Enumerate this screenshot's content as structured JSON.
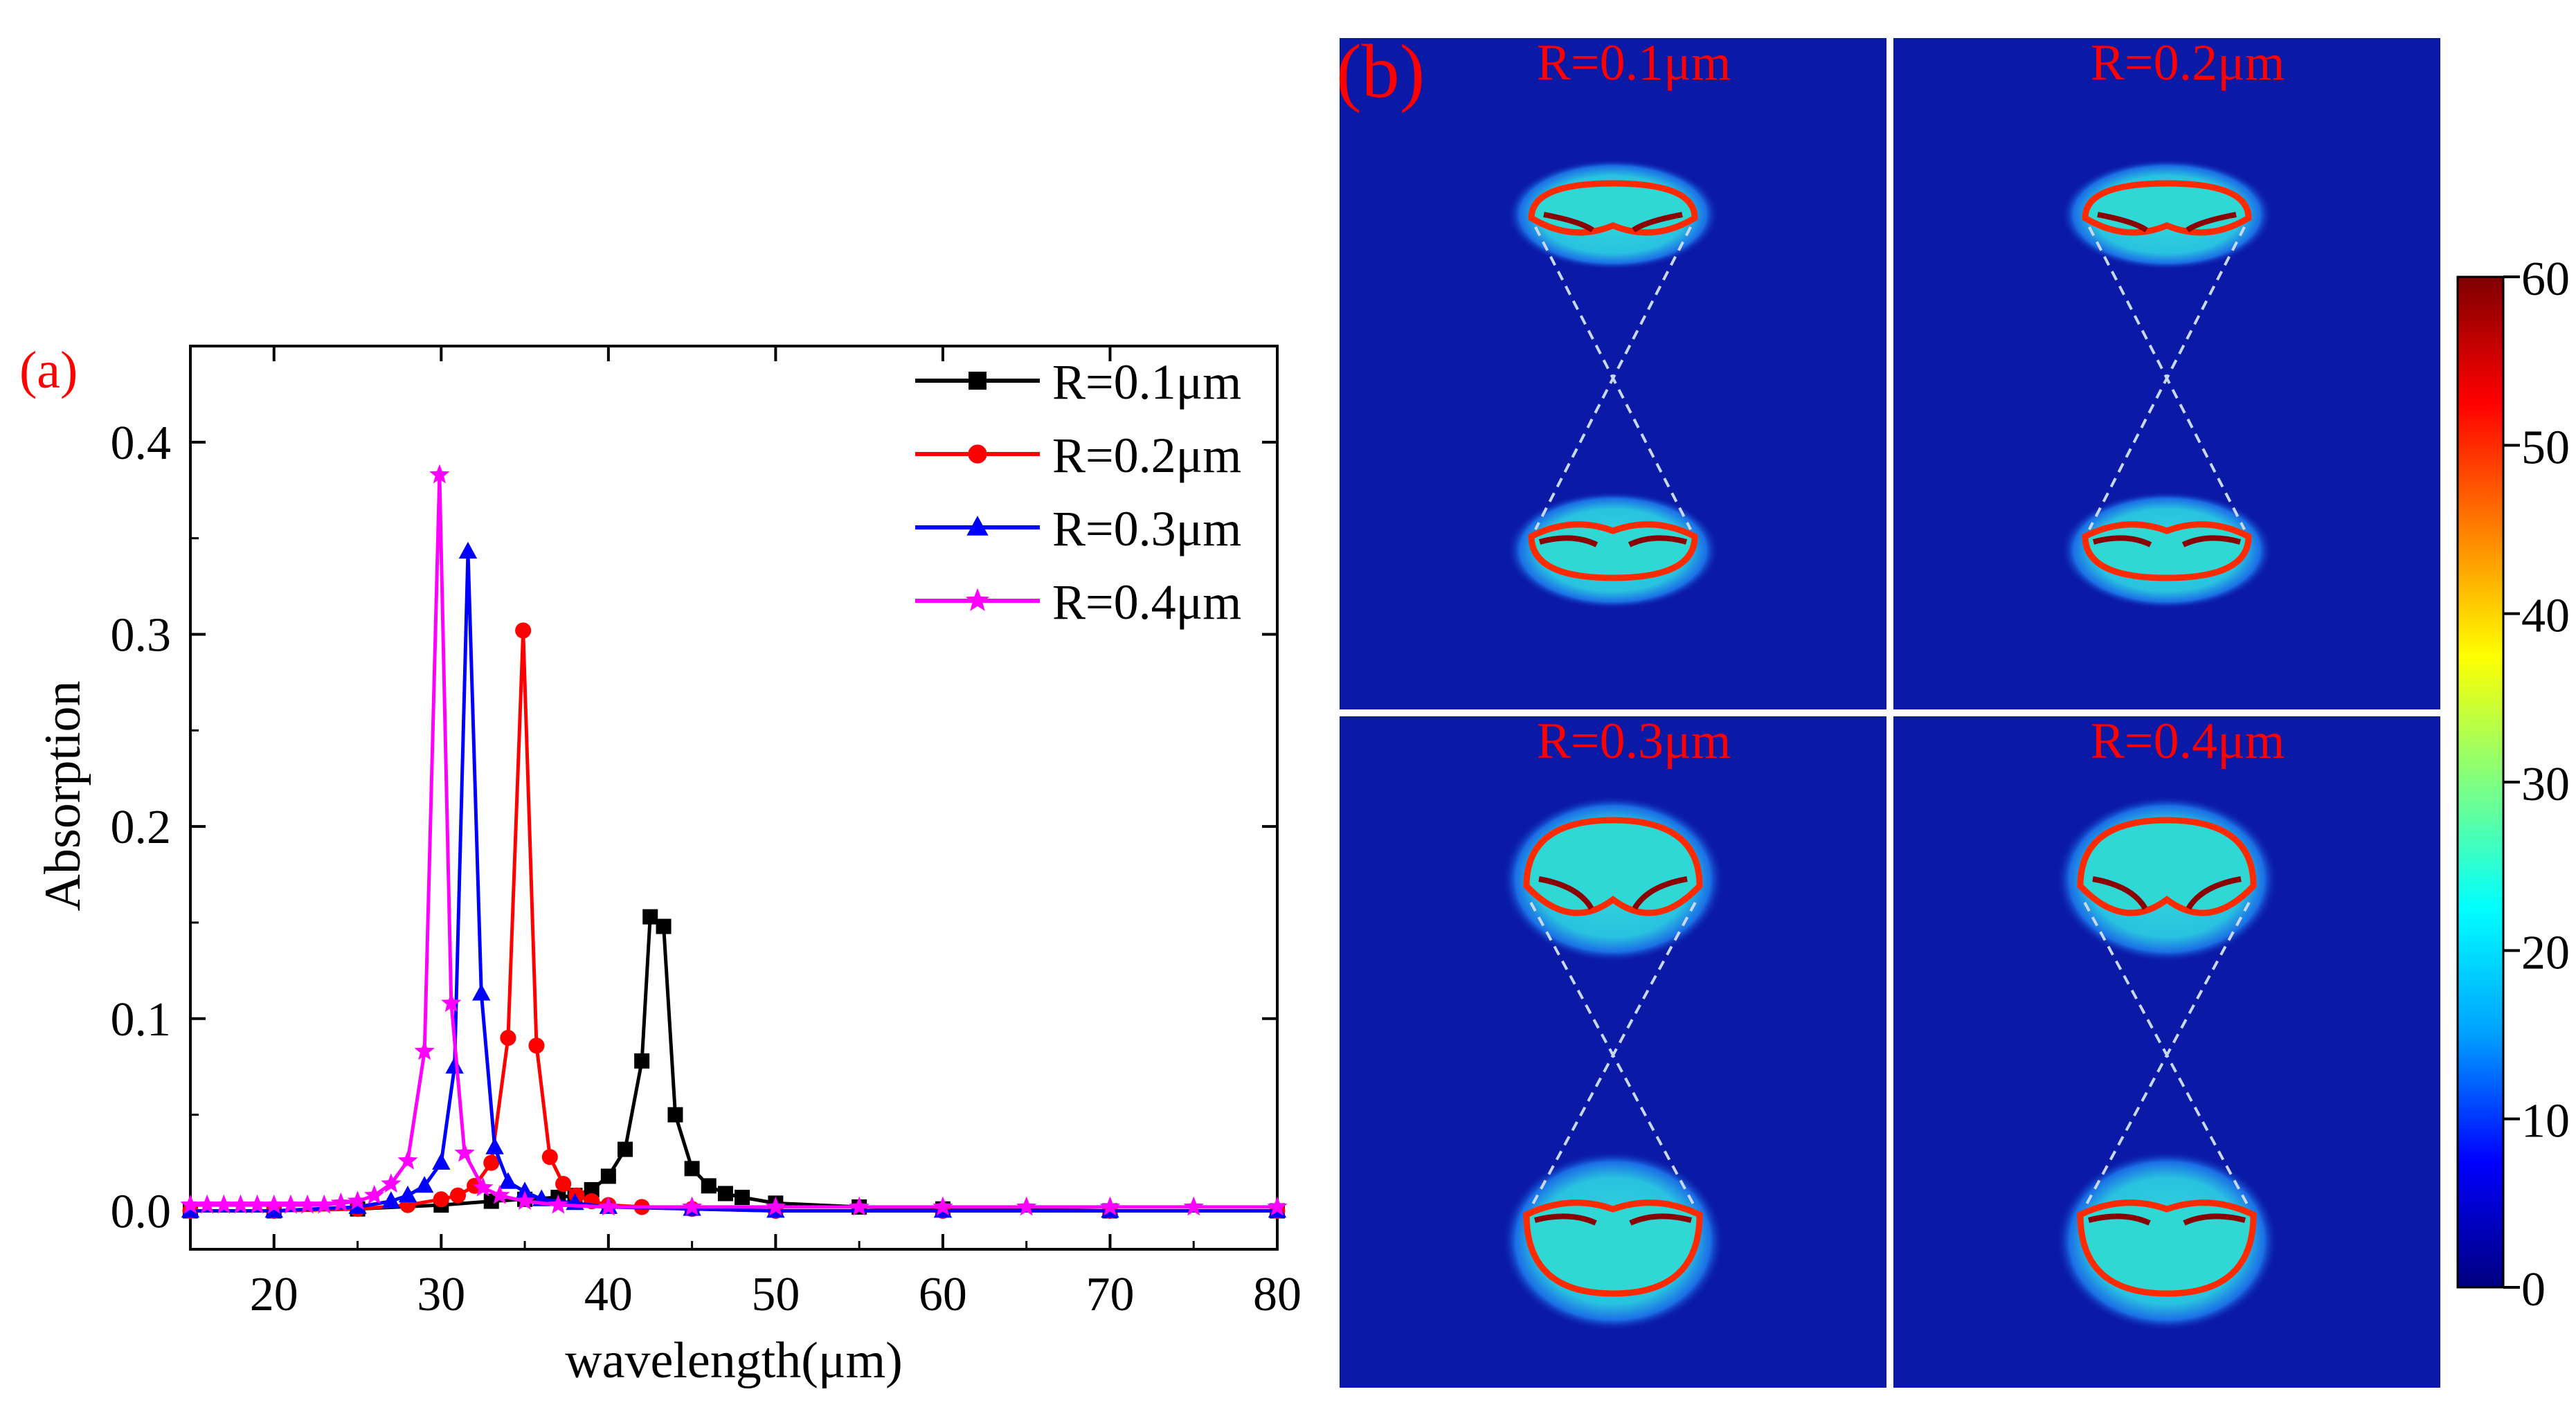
{
  "panel_a": {
    "label": "(a)",
    "label_color": "#ff0000"
  },
  "panel_b": {
    "label": "(b)",
    "label_color": "#ff0000",
    "panels": [
      {
        "title": "R=0.1μm",
        "lobe": "narrow"
      },
      {
        "title": "R=0.2μm",
        "lobe": "narrow"
      },
      {
        "title": "R=0.3μm",
        "lobe": "wide"
      },
      {
        "title": "R=0.4μm",
        "lobe": "wide"
      }
    ],
    "colorbar": {
      "ticks": [
        "0",
        "10",
        "20",
        "30",
        "40",
        "50",
        "60"
      ],
      "tick_values": [
        0,
        10,
        20,
        30,
        40,
        50,
        60
      ],
      "min": 0,
      "max": 60,
      "colors": [
        "#00007f",
        "#0000ff",
        "#00a0ff",
        "#00ffff",
        "#80ff80",
        "#ffff00",
        "#ff8000",
        "#ff0000",
        "#7f0000"
      ]
    },
    "background_color": "#0a1aa6"
  },
  "chart_data": {
    "type": "line",
    "title": "",
    "xlabel": "wavelength(μm)",
    "ylabel": "Absorption",
    "xlim": [
      15,
      80
    ],
    "ylim": [
      -0.02,
      0.45
    ],
    "xticks": [
      "20",
      "30",
      "40",
      "50",
      "60",
      "70",
      "80"
    ],
    "xtick_values": [
      20,
      30,
      40,
      50,
      60,
      70,
      80
    ],
    "yticks": [
      "0.0",
      "0.1",
      "0.2",
      "0.3",
      "0.4"
    ],
    "ytick_values": [
      0.0,
      0.1,
      0.2,
      0.3,
      0.4
    ],
    "legend_position": "top-right",
    "series": [
      {
        "name": "R=0.1μm",
        "color": "#000000",
        "marker": "square",
        "x": [
          15,
          20,
          25,
          30,
          33,
          35,
          37,
          38,
          39,
          40,
          41,
          42,
          42.5,
          43.3,
          44,
          45,
          46,
          47,
          48,
          50,
          55,
          60,
          70,
          80
        ],
        "y": [
          0,
          0,
          0.001,
          0.003,
          0.005,
          0.006,
          0.007,
          0.008,
          0.011,
          0.018,
          0.032,
          0.078,
          0.153,
          0.148,
          0.05,
          0.022,
          0.013,
          0.009,
          0.007,
          0.004,
          0.002,
          0.001,
          0,
          0
        ]
      },
      {
        "name": "R=0.2μm",
        "color": "#ff0000",
        "marker": "circle",
        "x": [
          15,
          20,
          25,
          28,
          30,
          31,
          32,
          33,
          34,
          34.9,
          35.7,
          36.5,
          37.3,
          38.1,
          39,
          40,
          42,
          45,
          50,
          60,
          70,
          80
        ],
        "y": [
          0,
          0,
          0.001,
          0.003,
          0.006,
          0.008,
          0.013,
          0.025,
          0.09,
          0.302,
          0.086,
          0.028,
          0.014,
          0.008,
          0.005,
          0.003,
          0.002,
          0.001,
          0,
          0,
          0,
          0
        ]
      },
      {
        "name": "R=0.3μm",
        "color": "#0000ff",
        "marker": "triangle",
        "x": [
          15,
          20,
          25,
          27,
          28,
          29,
          30,
          30.8,
          31.6,
          32.4,
          33.2,
          34,
          35,
          36,
          38,
          40,
          45,
          50,
          60,
          70,
          80
        ],
        "y": [
          0,
          0,
          0.002,
          0.005,
          0.008,
          0.013,
          0.025,
          0.075,
          0.343,
          0.113,
          0.033,
          0.015,
          0.01,
          0.006,
          0.004,
          0.002,
          0.001,
          0,
          0,
          0,
          0
        ]
      },
      {
        "name": "R=0.4μm",
        "color": "#ff00ff",
        "marker": "star",
        "x": [
          15,
          16,
          17,
          18,
          19,
          20,
          21,
          22,
          23,
          24,
          25,
          26,
          27,
          28,
          29,
          29.9,
          30.6,
          31.4,
          32.5,
          33.5,
          35,
          37,
          40,
          45,
          50,
          55,
          60,
          65,
          70,
          75,
          80
        ],
        "y": [
          0.003,
          0.003,
          0.003,
          0.003,
          0.003,
          0.003,
          0.003,
          0.003,
          0.003,
          0.004,
          0.005,
          0.008,
          0.014,
          0.026,
          0.083,
          0.383,
          0.108,
          0.03,
          0.012,
          0.008,
          0.005,
          0.003,
          0.002,
          0.002,
          0.002,
          0.002,
          0.002,
          0.002,
          0.002,
          0.002,
          0.002
        ]
      }
    ]
  }
}
